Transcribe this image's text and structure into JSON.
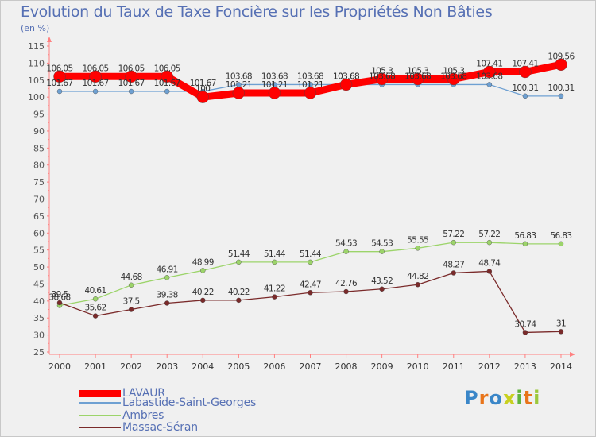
{
  "title": "Evolution du Taux de Taxe Foncière sur les Propriétés Non Bâties",
  "subtitle": "(en %)",
  "chart_data": {
    "type": "line",
    "title": "Evolution du Taux de Taxe Foncière sur les Propriétés Non Bâties",
    "ylabel": "(en %)",
    "xlabel": "",
    "ylim": [
      25,
      115
    ],
    "y_ticks": [
      25,
      30,
      35,
      40,
      45,
      50,
      55,
      60,
      65,
      70,
      75,
      80,
      85,
      90,
      95,
      100,
      105,
      110,
      115
    ],
    "grid": false,
    "x": [
      "2000",
      "2001",
      "2002",
      "2003",
      "2004",
      "2005",
      "2006",
      "2007",
      "2008",
      "2009",
      "2010",
      "2011",
      "2012",
      "2013",
      "2014"
    ],
    "series": [
      {
        "name": "LAVAUR",
        "color": "#ff0000",
        "values": [
          106.05,
          106.05,
          106.05,
          106.05,
          100,
          101.21,
          101.21,
          101.21,
          103.68,
          105.3,
          105.3,
          105.3,
          107.41,
          107.41,
          109.56
        ],
        "labels": [
          "106.05",
          "106.05",
          "106.05",
          "106.05",
          "100",
          "101.21",
          "101.21",
          "101.21",
          "103.68",
          "105.3",
          "105.3",
          "105.3",
          "107.41",
          "107.41",
          "109.56"
        ]
      },
      {
        "name": "Labastide-Saint-Georges",
        "color": "#6ea0d2",
        "values": [
          101.67,
          101.67,
          101.67,
          101.67,
          101.67,
          103.68,
          103.68,
          103.68,
          103.68,
          103.68,
          103.68,
          103.68,
          103.68,
          100.31,
          100.31
        ],
        "labels": [
          "101.67",
          "101.67",
          "101.67",
          "101.67",
          "101.67",
          "103.68",
          "103.68",
          "103.68",
          "103.68",
          "103.68",
          "103.68",
          "103.68",
          "103.68",
          "100.31",
          "100.31"
        ]
      },
      {
        "name": "Ambres",
        "color": "#9cd46a",
        "values": [
          38.68,
          40.61,
          44.68,
          46.91,
          48.99,
          51.44,
          51.44,
          51.44,
          54.53,
          54.53,
          55.55,
          57.22,
          57.22,
          56.83,
          56.83
        ],
        "labels": [
          "38.68",
          "40.61",
          "44.68",
          "46.91",
          "48.99",
          "51.44",
          "51.44",
          "51.44",
          "54.53",
          "54.53",
          "55.55",
          "57.22",
          "57.22",
          "56.83",
          "56.83"
        ]
      },
      {
        "name": "Massac-Séran",
        "color": "#7a2a2a",
        "values": [
          39.5,
          35.62,
          37.5,
          39.38,
          40.22,
          40.22,
          41.22,
          42.47,
          42.76,
          43.52,
          44.82,
          48.27,
          48.74,
          30.74,
          31
        ],
        "labels": [
          "39.5",
          "35.62",
          "37.5",
          "39.38",
          "40.22",
          "40.22",
          "41.22",
          "42.47",
          "42.76",
          "43.52",
          "44.82",
          "48.27",
          "48.74",
          "30.74",
          "31"
        ]
      }
    ],
    "legend_position": "bottom-left"
  },
  "legend": [
    {
      "name": "LAVAUR",
      "color": "#ff0000"
    },
    {
      "name": "Labastide-Saint-Georges",
      "color": "#6ea0d2"
    },
    {
      "name": "Ambres",
      "color": "#9cd46a"
    },
    {
      "name": "Massac-Séran",
      "color": "#7a2a2a"
    }
  ],
  "logo": {
    "letters": [
      "P",
      "r",
      "o",
      "x",
      "i",
      "t",
      "i"
    ],
    "colors": [
      "#3a86c8",
      "#e8741a",
      "#3a86c8",
      "#c8d020",
      "#5fb43c",
      "#e8741a",
      "#9cc83c"
    ],
    "label": "Proxiti"
  }
}
